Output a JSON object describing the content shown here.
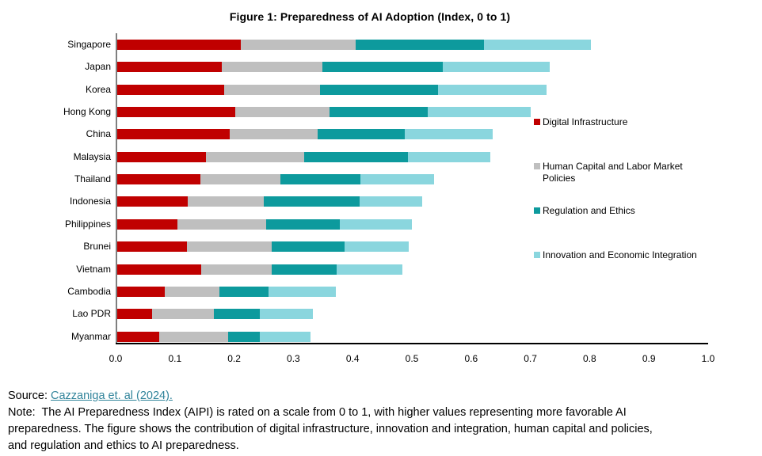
{
  "figure": {
    "title": "Figure 1: Preparedness of AI Adoption (Index, 0 to 1)"
  },
  "chart_data": {
    "type": "bar",
    "orientation": "horizontal-stacked",
    "title": "Figure 1: Preparedness of AI Adoption (Index, 0 to 1)",
    "categories": [
      "Singapore",
      "Japan",
      "Korea",
      "Hong Kong",
      "China",
      "Malaysia",
      "Thailand",
      "Indonesia",
      "Philippines",
      "Brunei",
      "Vietnam",
      "Cambodia",
      "Lao PDR",
      "Myanmar"
    ],
    "series": [
      {
        "name": "Digital Infrastructure",
        "color": "#c00000",
        "values": [
          0.208,
          0.177,
          0.18,
          0.199,
          0.19,
          0.149,
          0.14,
          0.119,
          0.102,
          0.118,
          0.142,
          0.08,
          0.059,
          0.071
        ]
      },
      {
        "name": "Human Capital and Labor Market Policies",
        "color": "#bfbfbf",
        "values": [
          0.194,
          0.169,
          0.163,
          0.159,
          0.148,
          0.167,
          0.136,
          0.128,
          0.15,
          0.143,
          0.119,
          0.093,
          0.104,
          0.116
        ]
      },
      {
        "name": "Regulation and Ethics",
        "color": "#0d9a9d",
        "values": [
          0.217,
          0.203,
          0.198,
          0.166,
          0.148,
          0.174,
          0.135,
          0.162,
          0.124,
          0.123,
          0.11,
          0.083,
          0.078,
          0.054
        ]
      },
      {
        "name": "Innovation and Economic Integration",
        "color": "#8ad6de",
        "values": [
          0.181,
          0.181,
          0.184,
          0.174,
          0.148,
          0.14,
          0.124,
          0.106,
          0.121,
          0.108,
          0.11,
          0.113,
          0.089,
          0.085
        ]
      }
    ],
    "totals": [
      0.8,
      0.73,
      0.725,
      0.7,
      0.63,
      0.63,
      0.535,
      0.515,
      0.5,
      0.49,
      0.48,
      0.37,
      0.33,
      0.33
    ],
    "xlim": [
      0,
      1
    ],
    "x_ticks": [
      "0.0",
      "0.1",
      "0.2",
      "0.3",
      "0.4",
      "0.5",
      "0.6",
      "0.7",
      "0.8",
      "0.9",
      "1.0"
    ],
    "legend_position": "right",
    "grid": false
  },
  "footer": {
    "source_label": "Source: ",
    "source_link": "Cazzaniga et. al (2024).",
    "note_lines": [
      "Note:  The AI Preparedness Index (AIPI) is rated on a scale from 0 to 1, with higher values representing more favorable AI",
      "preparedness. The figure shows the contribution of digital infrastructure, innovation and integration, human capital and policies,",
      "and regulation and ethics to AI preparedness."
    ]
  },
  "colors": {
    "digital_infrastructure": "#c00000",
    "human_capital": "#bfbfbf",
    "regulation_ethics": "#0d9a9d",
    "innovation_integration": "#8ad6de",
    "axis_y": "#7f7f7f",
    "axis_x": "#000000",
    "link": "#31849b"
  }
}
